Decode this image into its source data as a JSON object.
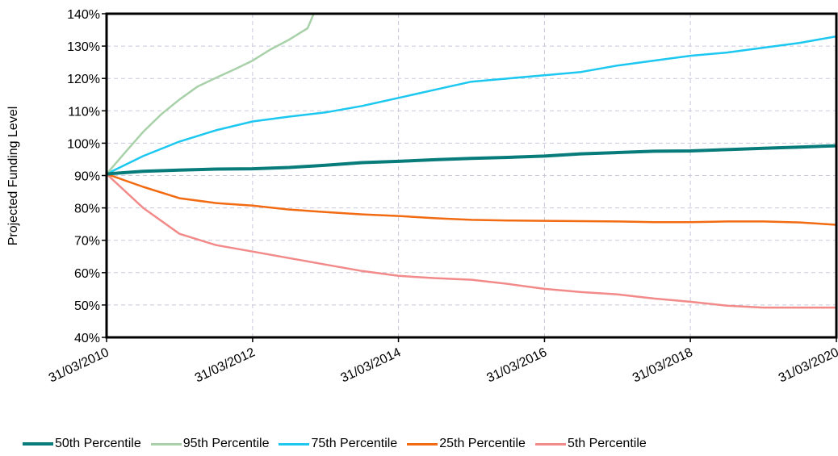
{
  "chart_data": {
    "type": "line",
    "title": "",
    "xlabel": "",
    "ylabel": "Projected Funding Level",
    "x_tick_labels": [
      "31/03/2010",
      "31/03/2012",
      "31/03/2014",
      "31/03/2016",
      "31/03/2018",
      "31/03/2020"
    ],
    "y_tick_labels": [
      "40%",
      "50%",
      "60%",
      "70%",
      "80%",
      "90%",
      "100%",
      "110%",
      "120%",
      "130%",
      "140%"
    ],
    "ylim": [
      40,
      140
    ],
    "xlim": [
      "2010-03-31",
      "2020-03-31"
    ],
    "grid": true,
    "legend_position": "bottom",
    "series": [
      {
        "name": "50th Percentile",
        "color": "#087B7B",
        "x": [
          "2010-03-31",
          "2010-09-30",
          "2011-03-31",
          "2011-09-30",
          "2012-03-31",
          "2012-09-30",
          "2013-03-31",
          "2013-09-30",
          "2014-03-31",
          "2014-09-30",
          "2015-03-31",
          "2015-09-30",
          "2016-03-31",
          "2016-09-30",
          "2017-03-31",
          "2017-09-30",
          "2018-03-31",
          "2018-09-30",
          "2019-03-31",
          "2019-09-30",
          "2020-03-31"
        ],
        "values": [
          90.5,
          91.3,
          91.7,
          92.0,
          92.1,
          92.5,
          93.2,
          94.0,
          94.4,
          94.9,
          95.3,
          95.6,
          96.0,
          96.7,
          97.1,
          97.5,
          97.6,
          98.0,
          98.4,
          98.8,
          99.2
        ]
      },
      {
        "name": "95th Percentile",
        "color": "#A9D1A9",
        "x": [
          "2010-03-31",
          "2010-06-30",
          "2010-09-30",
          "2010-12-31",
          "2011-03-31",
          "2011-06-30",
          "2011-09-30",
          "2011-12-31",
          "2012-03-31",
          "2012-06-30",
          "2012-09-30",
          "2012-12-31",
          "2013-01-31"
        ],
        "values": [
          90.5,
          97,
          103.5,
          109,
          113.5,
          117.5,
          120.2,
          122.8,
          125.5,
          129,
          132,
          135.5,
          140
        ]
      },
      {
        "name": "75th Percentile",
        "color": "#1CC8F0",
        "x": [
          "2010-03-31",
          "2010-09-30",
          "2011-03-31",
          "2011-09-30",
          "2012-03-31",
          "2012-09-30",
          "2013-03-31",
          "2013-09-30",
          "2014-03-31",
          "2014-09-30",
          "2015-03-31",
          "2015-09-30",
          "2016-03-31",
          "2016-09-30",
          "2017-03-31",
          "2017-09-30",
          "2018-03-31",
          "2018-09-30",
          "2019-03-31",
          "2019-09-30",
          "2020-03-31"
        ],
        "values": [
          90.5,
          96,
          100.5,
          104,
          106.7,
          108.2,
          109.5,
          111.5,
          114,
          116.5,
          119,
          120,
          121,
          122,
          124,
          125.5,
          127,
          128,
          129.5,
          131,
          133
        ]
      },
      {
        "name": "25th Percentile",
        "color": "#F26A11",
        "x": [
          "2010-03-31",
          "2010-09-30",
          "2011-03-31",
          "2011-09-30",
          "2012-03-31",
          "2012-09-30",
          "2013-03-31",
          "2013-09-30",
          "2014-03-31",
          "2014-09-30",
          "2015-03-31",
          "2015-09-30",
          "2016-03-31",
          "2016-09-30",
          "2017-03-31",
          "2017-09-30",
          "2018-03-31",
          "2018-09-30",
          "2019-03-31",
          "2019-09-30",
          "2020-03-31"
        ],
        "values": [
          90.5,
          86.5,
          83,
          81.5,
          80.7,
          79.5,
          78.7,
          78,
          77.5,
          76.8,
          76.3,
          76.1,
          76,
          75.9,
          75.8,
          75.6,
          75.6,
          75.8,
          75.8,
          75.5,
          74.8
        ]
      },
      {
        "name": "5th Percentile",
        "color": "#F28A8A",
        "x": [
          "2010-03-31",
          "2010-09-30",
          "2011-03-31",
          "2011-09-30",
          "2012-03-31",
          "2012-09-30",
          "2013-03-31",
          "2013-09-30",
          "2014-03-31",
          "2014-09-30",
          "2015-03-31",
          "2015-09-30",
          "2016-03-31",
          "2016-09-30",
          "2017-03-31",
          "2017-09-30",
          "2018-03-31",
          "2018-09-30",
          "2019-03-31",
          "2019-09-30",
          "2020-03-31"
        ],
        "values": [
          90.5,
          80,
          72,
          68.5,
          66.5,
          64.5,
          62.5,
          60.5,
          59,
          58.3,
          57.8,
          56.5,
          55,
          54,
          53.3,
          52,
          51,
          49.8,
          49.2,
          49.2,
          49.2
        ]
      }
    ]
  }
}
